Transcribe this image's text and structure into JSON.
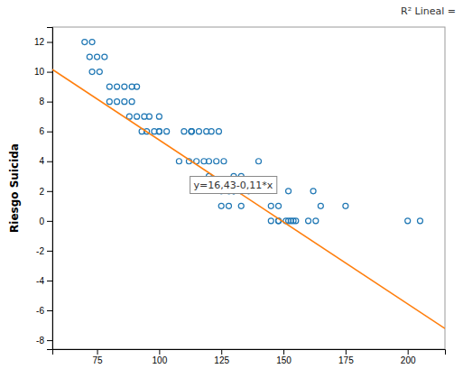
{
  "chart_data": {
    "type": "scatter",
    "ylabel": "Riesgo Suicida",
    "annotations": [
      "y=16,43-0,11*x",
      "R² Lineal ="
    ],
    "xlim": [
      57,
      215
    ],
    "ylim": [
      -8.6,
      13.0
    ],
    "xticks": [
      75,
      100,
      125,
      150,
      175,
      200
    ],
    "yticks": [
      -8,
      -6,
      -4,
      -2,
      0,
      2,
      4,
      6,
      8,
      10,
      12
    ],
    "grid": false,
    "series": [
      {
        "type": "scatter",
        "marker": "open-circle",
        "x": [
          70,
          73,
          72,
          75,
          78,
          73,
          76,
          80,
          83,
          86,
          89,
          91,
          80,
          83,
          86,
          89,
          88,
          91,
          94,
          93,
          96,
          95,
          98,
          100,
          103,
          100,
          100,
          108,
          112,
          115,
          118,
          110,
          113,
          113,
          113,
          116,
          119,
          121,
          124,
          120,
          123,
          120,
          126,
          125,
          128,
          130,
          125,
          128,
          130,
          133,
          130,
          133,
          133,
          136,
          140,
          145,
          148,
          151,
          153,
          154,
          155,
          145,
          148,
          148,
          152,
          152,
          160,
          163,
          162,
          165,
          175,
          200,
          205
        ],
        "values": [
          12,
          12,
          11,
          11,
          11,
          10,
          10,
          9,
          9,
          9,
          9,
          9,
          8,
          8,
          8,
          8,
          7,
          7,
          7,
          6,
          7,
          6,
          6,
          6,
          6,
          7,
          6,
          4,
          4,
          4,
          4,
          6,
          6,
          6,
          6,
          6,
          6,
          6,
          6,
          3,
          4,
          4,
          4,
          2,
          2,
          2,
          1,
          1,
          3,
          3,
          2,
          2,
          1,
          2,
          4,
          0,
          0,
          0,
          0,
          0,
          0,
          1,
          1,
          0,
          0,
          2,
          0,
          0,
          2,
          1,
          1,
          0,
          0
        ]
      },
      {
        "type": "line",
        "line_style": "solid",
        "x": [
          57,
          215
        ],
        "values": [
          10.16,
          -7.22
        ]
      }
    ]
  }
}
